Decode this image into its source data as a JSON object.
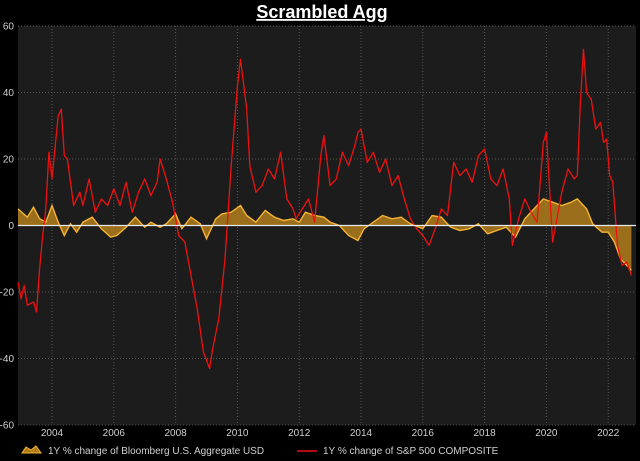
{
  "chart_data": {
    "type": "line",
    "title": "Scrambled Agg",
    "xlabel": "",
    "ylabel": "",
    "xlim": [
      2002.9,
      2022.9
    ],
    "ylim": [
      -60,
      60
    ],
    "y_ticks": [
      -60,
      -40,
      -20,
      0,
      20,
      40,
      60
    ],
    "x_ticks": [
      2004,
      2006,
      2008,
      2010,
      2012,
      2014,
      2016,
      2018,
      2020,
      2022
    ],
    "grid": true,
    "legend_position": "bottom",
    "colors": {
      "background": "#000000",
      "plot_background": "#1c1c1c",
      "grid": "#555555",
      "zero_line": "#e8e8e8",
      "agg_fill": "#b07c1a",
      "agg_line": "#f5b335",
      "spx_line": "#ee1111"
    },
    "series": [
      {
        "name": "1Y % change of Bloomberg U.S. Aggregate USD",
        "style": "area",
        "points": [
          [
            2002.9,
            5.0
          ],
          [
            2003.2,
            2.5
          ],
          [
            2003.4,
            5.5
          ],
          [
            2003.6,
            2.0
          ],
          [
            2003.8,
            1.0
          ],
          [
            2004.0,
            6.0
          ],
          [
            2004.2,
            1.0
          ],
          [
            2004.4,
            -3.0
          ],
          [
            2004.6,
            0.5
          ],
          [
            2004.8,
            -2.0
          ],
          [
            2005.0,
            1.0
          ],
          [
            2005.3,
            2.5
          ],
          [
            2005.6,
            -1.0
          ],
          [
            2005.9,
            -3.5
          ],
          [
            2006.1,
            -3.0
          ],
          [
            2006.4,
            -0.5
          ],
          [
            2006.7,
            2.5
          ],
          [
            2007.0,
            -0.5
          ],
          [
            2007.2,
            1.0
          ],
          [
            2007.5,
            -0.5
          ],
          [
            2007.7,
            0.5
          ],
          [
            2008.0,
            3.5
          ],
          [
            2008.2,
            -1.0
          ],
          [
            2008.5,
            2.5
          ],
          [
            2008.8,
            0.5
          ],
          [
            2009.0,
            -4.0
          ],
          [
            2009.3,
            2.0
          ],
          [
            2009.5,
            3.5
          ],
          [
            2009.8,
            4.0
          ],
          [
            2010.1,
            6.0
          ],
          [
            2010.3,
            3.0
          ],
          [
            2010.6,
            1.0
          ],
          [
            2010.9,
            4.5
          ],
          [
            2011.2,
            2.5
          ],
          [
            2011.5,
            1.5
          ],
          [
            2011.8,
            2.0
          ],
          [
            2012.0,
            1.0
          ],
          [
            2012.2,
            4.0
          ],
          [
            2012.5,
            3.0
          ],
          [
            2012.8,
            2.5
          ],
          [
            2013.0,
            1.0
          ],
          [
            2013.3,
            0.0
          ],
          [
            2013.6,
            -3.0
          ],
          [
            2013.9,
            -4.5
          ],
          [
            2014.1,
            -1.0
          ],
          [
            2014.4,
            1.0
          ],
          [
            2014.7,
            3.0
          ],
          [
            2015.0,
            2.0
          ],
          [
            2015.3,
            2.5
          ],
          [
            2015.6,
            0.5
          ],
          [
            2016.0,
            -1.0
          ],
          [
            2016.3,
            3.0
          ],
          [
            2016.6,
            2.5
          ],
          [
            2016.9,
            -0.5
          ],
          [
            2017.2,
            -1.5
          ],
          [
            2017.5,
            -1.0
          ],
          [
            2017.8,
            0.5
          ],
          [
            2018.1,
            -2.5
          ],
          [
            2018.4,
            -1.5
          ],
          [
            2018.7,
            -0.5
          ],
          [
            2019.0,
            -3.5
          ],
          [
            2019.3,
            2.0
          ],
          [
            2019.6,
            5.0
          ],
          [
            2019.9,
            8.0
          ],
          [
            2020.2,
            7.0
          ],
          [
            2020.5,
            6.0
          ],
          [
            2020.8,
            7.0
          ],
          [
            2021.0,
            8.0
          ],
          [
            2021.3,
            5.0
          ],
          [
            2021.5,
            0.5
          ],
          [
            2021.8,
            -2.0
          ],
          [
            2022.0,
            -2.0
          ],
          [
            2022.2,
            -5.0
          ],
          [
            2022.4,
            -10.0
          ],
          [
            2022.6,
            -12.0
          ],
          [
            2022.75,
            -13.5
          ]
        ]
      },
      {
        "name": "1Y % change of S&P 500 COMPOSITE",
        "style": "line",
        "points": [
          [
            2002.9,
            -17.0
          ],
          [
            2003.0,
            -22.0
          ],
          [
            2003.1,
            -18.0
          ],
          [
            2003.2,
            -24.0
          ],
          [
            2003.4,
            -23.0
          ],
          [
            2003.5,
            -26.0
          ],
          [
            2003.6,
            -13.0
          ],
          [
            2003.7,
            -3.0
          ],
          [
            2003.8,
            5.0
          ],
          [
            2003.9,
            22.0
          ],
          [
            2004.0,
            14.0
          ],
          [
            2004.2,
            33.0
          ],
          [
            2004.3,
            35.0
          ],
          [
            2004.4,
            21.0
          ],
          [
            2004.5,
            20.0
          ],
          [
            2004.7,
            6.0
          ],
          [
            2004.9,
            10.0
          ],
          [
            2005.0,
            6.0
          ],
          [
            2005.2,
            14.0
          ],
          [
            2005.4,
            4.0
          ],
          [
            2005.6,
            8.0
          ],
          [
            2005.8,
            6.0
          ],
          [
            2006.0,
            11.0
          ],
          [
            2006.2,
            6.0
          ],
          [
            2006.4,
            13.0
          ],
          [
            2006.6,
            4.0
          ],
          [
            2006.8,
            10.0
          ],
          [
            2007.0,
            14.0
          ],
          [
            2007.2,
            9.0
          ],
          [
            2007.4,
            13.0
          ],
          [
            2007.5,
            20.0
          ],
          [
            2007.7,
            14.0
          ],
          [
            2007.9,
            7.0
          ],
          [
            2008.1,
            -3.0
          ],
          [
            2008.3,
            -5.0
          ],
          [
            2008.5,
            -15.0
          ],
          [
            2008.7,
            -25.0
          ],
          [
            2008.9,
            -38.0
          ],
          [
            2009.1,
            -43.0
          ],
          [
            2009.2,
            -37.0
          ],
          [
            2009.4,
            -28.0
          ],
          [
            2009.6,
            -10.0
          ],
          [
            2009.8,
            18.0
          ],
          [
            2010.0,
            42.0
          ],
          [
            2010.1,
            50.0
          ],
          [
            2010.3,
            35.0
          ],
          [
            2010.4,
            18.0
          ],
          [
            2010.6,
            10.0
          ],
          [
            2010.8,
            12.0
          ],
          [
            2011.0,
            17.0
          ],
          [
            2011.2,
            14.0
          ],
          [
            2011.4,
            22.0
          ],
          [
            2011.6,
            8.0
          ],
          [
            2011.8,
            5.0
          ],
          [
            2011.9,
            2.0
          ],
          [
            2012.1,
            5.0
          ],
          [
            2012.3,
            8.0
          ],
          [
            2012.5,
            1.0
          ],
          [
            2012.7,
            21.0
          ],
          [
            2012.8,
            27.0
          ],
          [
            2013.0,
            12.0
          ],
          [
            2013.2,
            14.0
          ],
          [
            2013.4,
            22.0
          ],
          [
            2013.6,
            18.0
          ],
          [
            2013.8,
            24.0
          ],
          [
            2013.9,
            28.0
          ],
          [
            2014.0,
            29.0
          ],
          [
            2014.2,
            19.0
          ],
          [
            2014.4,
            22.0
          ],
          [
            2014.6,
            16.0
          ],
          [
            2014.8,
            20.0
          ],
          [
            2015.0,
            12.0
          ],
          [
            2015.2,
            15.0
          ],
          [
            2015.4,
            8.0
          ],
          [
            2015.6,
            2.0
          ],
          [
            2015.8,
            -1.0
          ],
          [
            2016.0,
            -3.0
          ],
          [
            2016.2,
            -6.0
          ],
          [
            2016.4,
            -1.0
          ],
          [
            2016.6,
            5.0
          ],
          [
            2016.8,
            3.0
          ],
          [
            2017.0,
            19.0
          ],
          [
            2017.2,
            15.0
          ],
          [
            2017.4,
            17.0
          ],
          [
            2017.6,
            13.0
          ],
          [
            2017.8,
            21.0
          ],
          [
            2018.0,
            23.0
          ],
          [
            2018.2,
            14.0
          ],
          [
            2018.4,
            12.0
          ],
          [
            2018.6,
            17.0
          ],
          [
            2018.8,
            8.0
          ],
          [
            2018.9,
            -6.0
          ],
          [
            2019.1,
            2.0
          ],
          [
            2019.3,
            8.0
          ],
          [
            2019.5,
            4.0
          ],
          [
            2019.7,
            1.0
          ],
          [
            2019.9,
            25.0
          ],
          [
            2020.0,
            28.0
          ],
          [
            2020.2,
            -5.0
          ],
          [
            2020.3,
            0.0
          ],
          [
            2020.5,
            10.0
          ],
          [
            2020.7,
            17.0
          ],
          [
            2020.9,
            14.0
          ],
          [
            2021.0,
            15.0
          ],
          [
            2021.1,
            37.0
          ],
          [
            2021.2,
            53.0
          ],
          [
            2021.3,
            40.0
          ],
          [
            2021.45,
            38.0
          ],
          [
            2021.6,
            29.0
          ],
          [
            2021.75,
            31.0
          ],
          [
            2021.85,
            25.0
          ],
          [
            2021.95,
            26.0
          ],
          [
            2022.05,
            15.0
          ],
          [
            2022.15,
            13.0
          ],
          [
            2022.3,
            -6.0
          ],
          [
            2022.45,
            -12.0
          ],
          [
            2022.6,
            -11.0
          ],
          [
            2022.75,
            -15.0
          ]
        ]
      }
    ]
  }
}
